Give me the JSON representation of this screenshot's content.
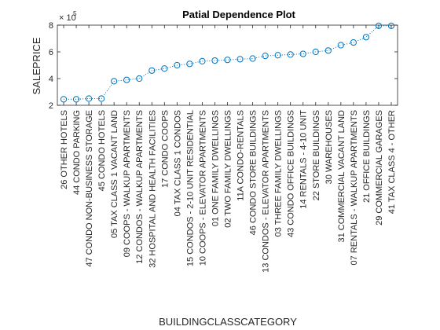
{
  "chart_data": {
    "type": "scatter",
    "title": "Patial Dependence Plot",
    "xlabel": "BUILDINGCLASSCATEGORY",
    "ylabel": "SALEPRICE",
    "exponent_label": "× 10",
    "exponent_power": "5",
    "ylim": [
      2,
      8
    ],
    "yticks": [
      2,
      4,
      6,
      8
    ],
    "grid": false,
    "marker": "circle",
    "line_style": "dotted",
    "color": "#0072BD",
    "categories": [
      "26  OTHER HOTELS",
      "44  CONDO PARKING",
      "47  CONDO NON-BUSINESS STORAGE",
      "45  CONDO HOTELS",
      "05  TAX CLASS 1 VACANT LAND",
      "09  COOPS - WALKUP APARTMENTS",
      "12  CONDOS - WALKUP APARTMENTS",
      "32  HOSPITAL AND HEALTH FACILITIES",
      "17  CONDO COOPS",
      "04  TAX CLASS 1 CONDOS",
      "15  CONDOS - 2-10 UNIT RESIDENTIAL",
      "10  COOPS - ELEVATOR APARTMENTS",
      "01  ONE FAMILY DWELLINGS",
      "02  TWO FAMILY DWELLINGS",
      "11A CONDO-RENTALS",
      "46  CONDO STORE BUILDINGS",
      "13  CONDOS - ELEVATOR APARTMENTS",
      "03  THREE FAMILY DWELLINGS",
      "43  CONDO OFFICE BUILDINGS",
      "14  RENTALS - 4-10 UNIT",
      "22  STORE BUILDINGS",
      "30  WAREHOUSES",
      "31  COMMERCIAL VACANT LAND",
      "07  RENTALS - WALKUP APARTMENTS",
      "21  OFFICE BUILDINGS",
      "29  COMMERCIAL GARAGES",
      "41  TAX CLASS 4 - OTHER"
    ],
    "values": [
      2.45,
      2.45,
      2.5,
      2.5,
      3.8,
      3.9,
      4.0,
      4.6,
      4.75,
      5.0,
      5.1,
      5.3,
      5.35,
      5.4,
      5.45,
      5.5,
      5.7,
      5.75,
      5.8,
      5.85,
      6.0,
      6.1,
      6.5,
      6.7,
      7.1,
      7.95,
      7.95
    ]
  }
}
